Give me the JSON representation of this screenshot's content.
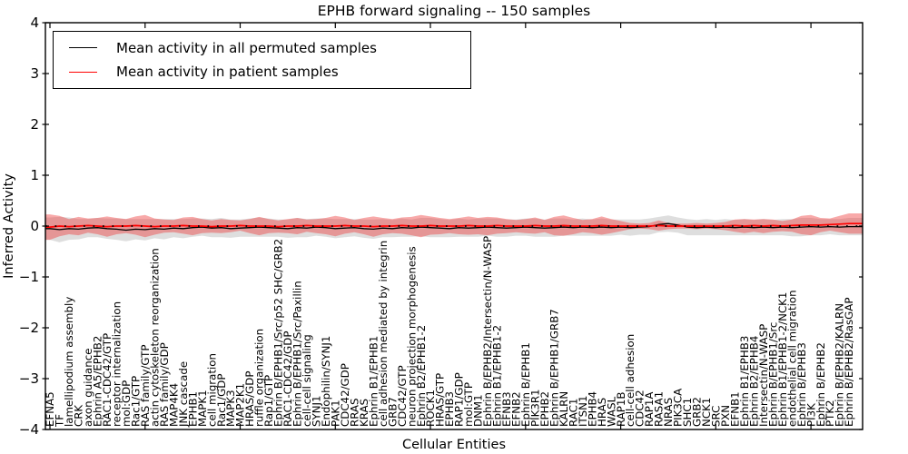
{
  "chart_data": {
    "type": "line",
    "title": "EPHB forward signaling -- 150 samples",
    "xlabel": "Cellular Entities",
    "ylabel": "Inferred Activity",
    "ylim": [
      -4,
      4
    ],
    "grid": false,
    "legend_position": "upper left",
    "xtick_interval": 10,
    "yticks": [
      {
        "value": 4,
        "label": "4"
      },
      {
        "value": 3,
        "label": "3"
      },
      {
        "value": 2,
        "label": "2"
      },
      {
        "value": 1,
        "label": "1"
      },
      {
        "value": 0,
        "label": "0"
      },
      {
        "value": -1,
        "label": "−1"
      },
      {
        "value": -2,
        "label": "−2"
      },
      {
        "value": -3,
        "label": "−3"
      },
      {
        "value": -4,
        "label": "−4"
      }
    ],
    "categories": [
      "EFNA5",
      "TF",
      "lamellipodium assembly",
      "CRK",
      "axon guidance",
      "Ephrin A5/EPHB2",
      "RAC1-CDC42/GTP",
      "receptor internalization",
      "mol:GDP",
      "Rac1/GTP",
      "RAS family/GTP",
      "actin cytoskeleton reorganization",
      "RAS family/GDP",
      "MAP4K4",
      "JNK cascade",
      "EPHB1",
      "MAPK1",
      "cell migration",
      "Rac1/GDP",
      "MAPK3",
      "MAP2K1",
      "HRAS/GDP",
      "ruffle organization",
      "Rap1/GTP",
      "Ephrin B/EPHB1/Src/p52 SHC/GRB2",
      "RAC1-CDC42/GDP",
      "Ephrin B/EPHB1/Src/Paxillin",
      "cell-cell signaling",
      "SYNJ1",
      "Endophilin/SYNJ1",
      "PAK1",
      "CDC42/GDP",
      "RRAS",
      "KRAS",
      "Ephrin B1/EPHB1",
      "cell adhesion mediated by integrin",
      "GRB7",
      "CDC42/GTP",
      "neuron projection morphogenesis",
      "Ephrin B2/EPHB1-2",
      "ROCK1",
      "HRAS/GTP",
      "EPHB3",
      "RAP1/GDP",
      "mol:GTP",
      "DNM1",
      "Ephrin B/EPHB2/Intersectin/N-WASP",
      "Ephrin B1/EPHB1-2",
      "EFNB3",
      "EFNB2",
      "Ephrin B/EPHB1",
      "PIK3R1",
      "EPHB2",
      "Ephrin B/EPHB1/GRB7",
      "KALRN",
      "RAC1",
      "ITSN1",
      "EPHB4",
      "HRAS",
      "WASL",
      "RAP1B",
      "cell-cell adhesion",
      "CDC42",
      "RAP1A",
      "RASA1",
      "NRAS",
      "PIK3CA",
      "SHC1",
      "GRB2",
      "NCK1",
      "SRC",
      "PXN",
      "EFNB1",
      "Ephrin B1/EPHB3",
      "Ephrin B2/EPHB4",
      "Intersectin/N-WASP",
      "Ephrin B/EPHB1/Src",
      "Ephrin B1/EPHB1-2/NCK1",
      "endothelial cell migration",
      "Ephrin B/EPHB3",
      "PI3K",
      "Ephrin B/EPHB2",
      "PTK2",
      "Ephrin B/EPHB2/KALRN",
      "Ephrin B/EPHB2/RasGAP"
    ],
    "series": [
      {
        "name": "Mean activity in all permuted samples",
        "color": "#000000",
        "values": [
          -0.05,
          -0.07,
          -0.05,
          -0.06,
          -0.04,
          -0.03,
          -0.05,
          -0.06,
          -0.08,
          -0.06,
          -0.07,
          -0.05,
          -0.06,
          -0.04,
          -0.05,
          -0.03,
          -0.02,
          -0.04,
          -0.03,
          -0.05,
          -0.04,
          -0.03,
          -0.02,
          -0.03,
          -0.04,
          -0.05,
          -0.03,
          -0.04,
          -0.02,
          -0.03,
          -0.05,
          -0.04,
          -0.03,
          -0.05,
          -0.06,
          -0.04,
          -0.05,
          -0.03,
          -0.04,
          -0.02,
          -0.03,
          -0.04,
          -0.05,
          -0.03,
          -0.04,
          -0.03,
          -0.02,
          -0.03,
          -0.04,
          -0.03,
          -0.02,
          -0.03,
          -0.04,
          -0.03,
          -0.02,
          -0.03,
          -0.02,
          -0.03,
          -0.02,
          -0.03,
          -0.02,
          -0.03,
          -0.02,
          -0.01,
          0.03,
          0.05,
          0.02,
          -0.02,
          -0.03,
          -0.02,
          -0.03,
          -0.02,
          -0.03,
          -0.02,
          -0.03,
          -0.02,
          -0.03,
          -0.02,
          -0.03,
          -0.02,
          -0.01,
          -0.02,
          -0.01,
          -0.02,
          -0.01
        ]
      },
      {
        "name": "Mean activity in patient samples",
        "color": "#ff0000",
        "values": [
          -0.02,
          0.0,
          -0.01,
          0.0,
          0.01,
          0.0,
          -0.01,
          0.0,
          0.0,
          0.01,
          0.0,
          -0.01,
          0.0,
          0.0,
          0.01,
          0.0,
          0.0,
          -0.01,
          0.0,
          0.0,
          0.01,
          0.0,
          0.0,
          0.0,
          -0.01,
          0.0,
          0.0,
          0.01,
          0.0,
          0.0,
          0.0,
          0.01,
          0.0,
          0.0,
          -0.01,
          0.0,
          0.0,
          0.01,
          0.0,
          0.0,
          0.01,
          0.0,
          0.0,
          0.0,
          0.01,
          0.0,
          0.0,
          0.01,
          0.0,
          0.0,
          0.0,
          0.01,
          0.0,
          0.0,
          0.01,
          0.0,
          0.0,
          0.0,
          0.01,
          0.0,
          0.0,
          0.0,
          0.0,
          0.0,
          0.01,
          0.0,
          0.0,
          0.0,
          0.0,
          0.0,
          0.0,
          0.0,
          0.01,
          0.0,
          0.01,
          0.0,
          0.01,
          0.0,
          0.01,
          0.02,
          0.02,
          0.02,
          0.03,
          0.04,
          0.05
        ]
      }
    ],
    "bands": [
      {
        "name": "permuted-samples-range-band",
        "center_series": 0,
        "color": "#999999",
        "opacity": 0.32,
        "halfwidth": [
          0.22,
          0.25,
          0.22,
          0.2,
          0.18,
          0.19,
          0.2,
          0.21,
          0.22,
          0.2,
          0.21,
          0.19,
          0.2,
          0.18,
          0.19,
          0.18,
          0.17,
          0.18,
          0.19,
          0.18,
          0.17,
          0.18,
          0.19,
          0.18,
          0.17,
          0.18,
          0.19,
          0.18,
          0.17,
          0.18,
          0.19,
          0.18,
          0.17,
          0.18,
          0.19,
          0.18,
          0.17,
          0.18,
          0.17,
          0.18,
          0.19,
          0.18,
          0.17,
          0.18,
          0.17,
          0.18,
          0.17,
          0.18,
          0.17,
          0.16,
          0.17,
          0.18,
          0.17,
          0.18,
          0.17,
          0.16,
          0.17,
          0.16,
          0.17,
          0.16,
          0.15,
          0.16,
          0.15,
          0.16,
          0.15,
          0.16,
          0.15,
          0.16,
          0.15,
          0.16,
          0.15,
          0.16,
          0.15,
          0.16,
          0.15,
          0.16,
          0.15,
          0.16,
          0.17,
          0.18,
          0.17,
          0.16,
          0.15,
          0.16,
          0.17
        ]
      },
      {
        "name": "patient-samples-range-band",
        "center_series": 1,
        "color": "#ee3333",
        "opacity": 0.42,
        "halfwidth": [
          0.25,
          0.2,
          0.15,
          0.18,
          0.14,
          0.16,
          0.2,
          0.16,
          0.14,
          0.18,
          0.22,
          0.16,
          0.13,
          0.12,
          0.16,
          0.18,
          0.14,
          0.12,
          0.14,
          0.12,
          0.1,
          0.14,
          0.18,
          0.14,
          0.12,
          0.14,
          0.16,
          0.12,
          0.14,
          0.16,
          0.2,
          0.16,
          0.12,
          0.16,
          0.2,
          0.16,
          0.14,
          0.16,
          0.18,
          0.22,
          0.18,
          0.16,
          0.14,
          0.16,
          0.18,
          0.16,
          0.18,
          0.16,
          0.14,
          0.12,
          0.14,
          0.16,
          0.12,
          0.18,
          0.2,
          0.16,
          0.12,
          0.14,
          0.18,
          0.14,
          0.1,
          0.06,
          0.05,
          0.06,
          0.1,
          0.06,
          0.05,
          0.05,
          0.06,
          0.05,
          0.06,
          0.08,
          0.12,
          0.14,
          0.12,
          0.14,
          0.12,
          0.1,
          0.12,
          0.18,
          0.2,
          0.14,
          0.12,
          0.16,
          0.2
        ]
      }
    ],
    "reference_line": {
      "y": 0,
      "style": "dotted",
      "color": "#000000"
    }
  }
}
